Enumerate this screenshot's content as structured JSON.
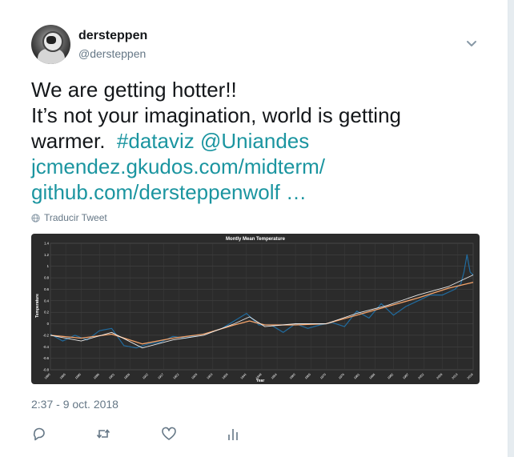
{
  "user": {
    "name": "dersteppen",
    "handle": "@dersteppen"
  },
  "tweet": {
    "line1": "We are getting hotter!!",
    "line2": "It’s not your imagination, world is getting",
    "line3": "warmer.",
    "hashtag": "#dataviz",
    "mention": "@Uniandes",
    "link1": "jcmendez.gkudos.com/midterm/",
    "link2": "github.com/dersteppenwolf …"
  },
  "translate_label": "Traducir Tweet",
  "timestamp": "2:37 - 9 oct. 2018",
  "icons": {
    "menu": "chevron-down-icon",
    "translate": "globe-icon",
    "reply": "reply-icon",
    "retweet": "retweet-icon",
    "like": "heart-icon",
    "analytics": "analytics-icon"
  },
  "colors": {
    "link": "#1b95a0",
    "series_monthly": "#1f77b4",
    "series_smooth": "#f5a46b",
    "series_trend": "#ffffff"
  },
  "chart_data": {
    "type": "line",
    "title": "Montly Mean Temperature",
    "xlabel": "Year",
    "ylabel": "Temperature",
    "ylim": [
      -0.8,
      1.4
    ],
    "yticks": [
      -0.8,
      -0.6,
      -0.4,
      -0.2,
      0.0,
      0.2,
      0.4,
      0.6,
      0.8,
      1.0,
      1.2,
      1.4
    ],
    "xlim": [
      1880,
      2018
    ],
    "xticks": [
      1880,
      1885,
      1890,
      1896,
      1901,
      1906,
      1912,
      1917,
      1922,
      1928,
      1933,
      1938,
      1944,
      1949,
      1954,
      1960,
      1965,
      1970,
      1976,
      1981,
      1986,
      1992,
      1997,
      2002,
      2008,
      2013,
      2018
    ],
    "grid": true,
    "series": [
      {
        "key": "monthly",
        "x": [
          1880,
          1884,
          1888,
          1892,
          1896,
          1900,
          1904,
          1908,
          1912,
          1916,
          1920,
          1924,
          1928,
          1932,
          1936,
          1940,
          1944,
          1948,
          1952,
          1956,
          1960,
          1964,
          1968,
          1972,
          1976,
          1980,
          1984,
          1988,
          1992,
          1996,
          2000,
          2004,
          2008,
          2012,
          2014,
          2015,
          2016,
          2017,
          2018
        ],
        "values": [
          -0.18,
          -0.3,
          -0.2,
          -0.28,
          -0.12,
          -0.08,
          -0.38,
          -0.42,
          -0.35,
          -0.32,
          -0.22,
          -0.25,
          -0.2,
          -0.15,
          -0.08,
          0.05,
          0.18,
          -0.02,
          -0.02,
          -0.15,
          0.0,
          -0.08,
          -0.02,
          0.02,
          -0.05,
          0.22,
          0.1,
          0.35,
          0.15,
          0.3,
          0.4,
          0.5,
          0.5,
          0.6,
          0.7,
          0.9,
          1.2,
          0.9,
          0.85
        ]
      },
      {
        "key": "smooth",
        "x": [
          1880,
          1890,
          1900,
          1910,
          1920,
          1930,
          1940,
          1945,
          1950,
          1960,
          1970,
          1980,
          1990,
          2000,
          2010,
          2018
        ],
        "values": [
          -0.2,
          -0.25,
          -0.18,
          -0.35,
          -0.25,
          -0.18,
          -0.02,
          0.05,
          -0.02,
          -0.02,
          0.0,
          0.15,
          0.3,
          0.45,
          0.62,
          0.72
        ]
      },
      {
        "key": "trend",
        "x": [
          1880,
          1890,
          1900,
          1910,
          1920,
          1930,
          1940,
          1945,
          1950,
          1960,
          1970,
          1980,
          1990,
          2000,
          2010,
          2018
        ],
        "values": [
          -0.2,
          -0.3,
          -0.15,
          -0.42,
          -0.28,
          -0.2,
          0.0,
          0.12,
          -0.05,
          0.0,
          0.0,
          0.18,
          0.32,
          0.5,
          0.65,
          0.85
        ]
      }
    ]
  }
}
